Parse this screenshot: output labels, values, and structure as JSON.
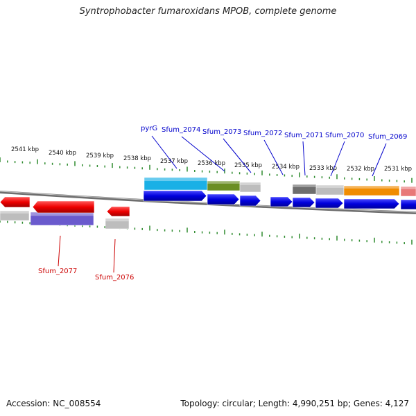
{
  "title": "Syntrophobacter fumaroxidans MPOB, complete genome",
  "ruler_labels": [
    "2541 kbp",
    "2540 kbp",
    "2539 kbp",
    "2538 kbp",
    "2537 kbp",
    "2536 kbp",
    "2535 kbp",
    "2534 kbp",
    "2533 kbp",
    "2532 kbp",
    "2531 kbp"
  ],
  "top_gene_labels": [
    "pyrG",
    "Sfum_2074",
    "Sfum_2073",
    "Sfum_2072",
    "Sfum_2071",
    "Sfum_2070",
    "Sfum_2069"
  ],
  "bottom_gene_labels": [
    "Sfum_2077",
    "Sfum_2076"
  ],
  "colors": {
    "forward_gene": "#0000dd",
    "reverse_gene": "#ee0000",
    "reverse_feature": "#6a5acd",
    "neutral_feature": "#bdbdbd",
    "ticks": "#2e8b2e",
    "forward_label": "#0000cc",
    "reverse_label": "#cc0000",
    "cog_colors": [
      "#1ab0e6",
      "#6b8e23",
      "#bdbdbd",
      "#6e6e6e",
      "#f08c00",
      "#e87878"
    ]
  },
  "footer": {
    "accession": "Accession: NC_008554",
    "summary": "Topology: circular; Length: 4,990,251 bp; Genes: 4,127"
  }
}
